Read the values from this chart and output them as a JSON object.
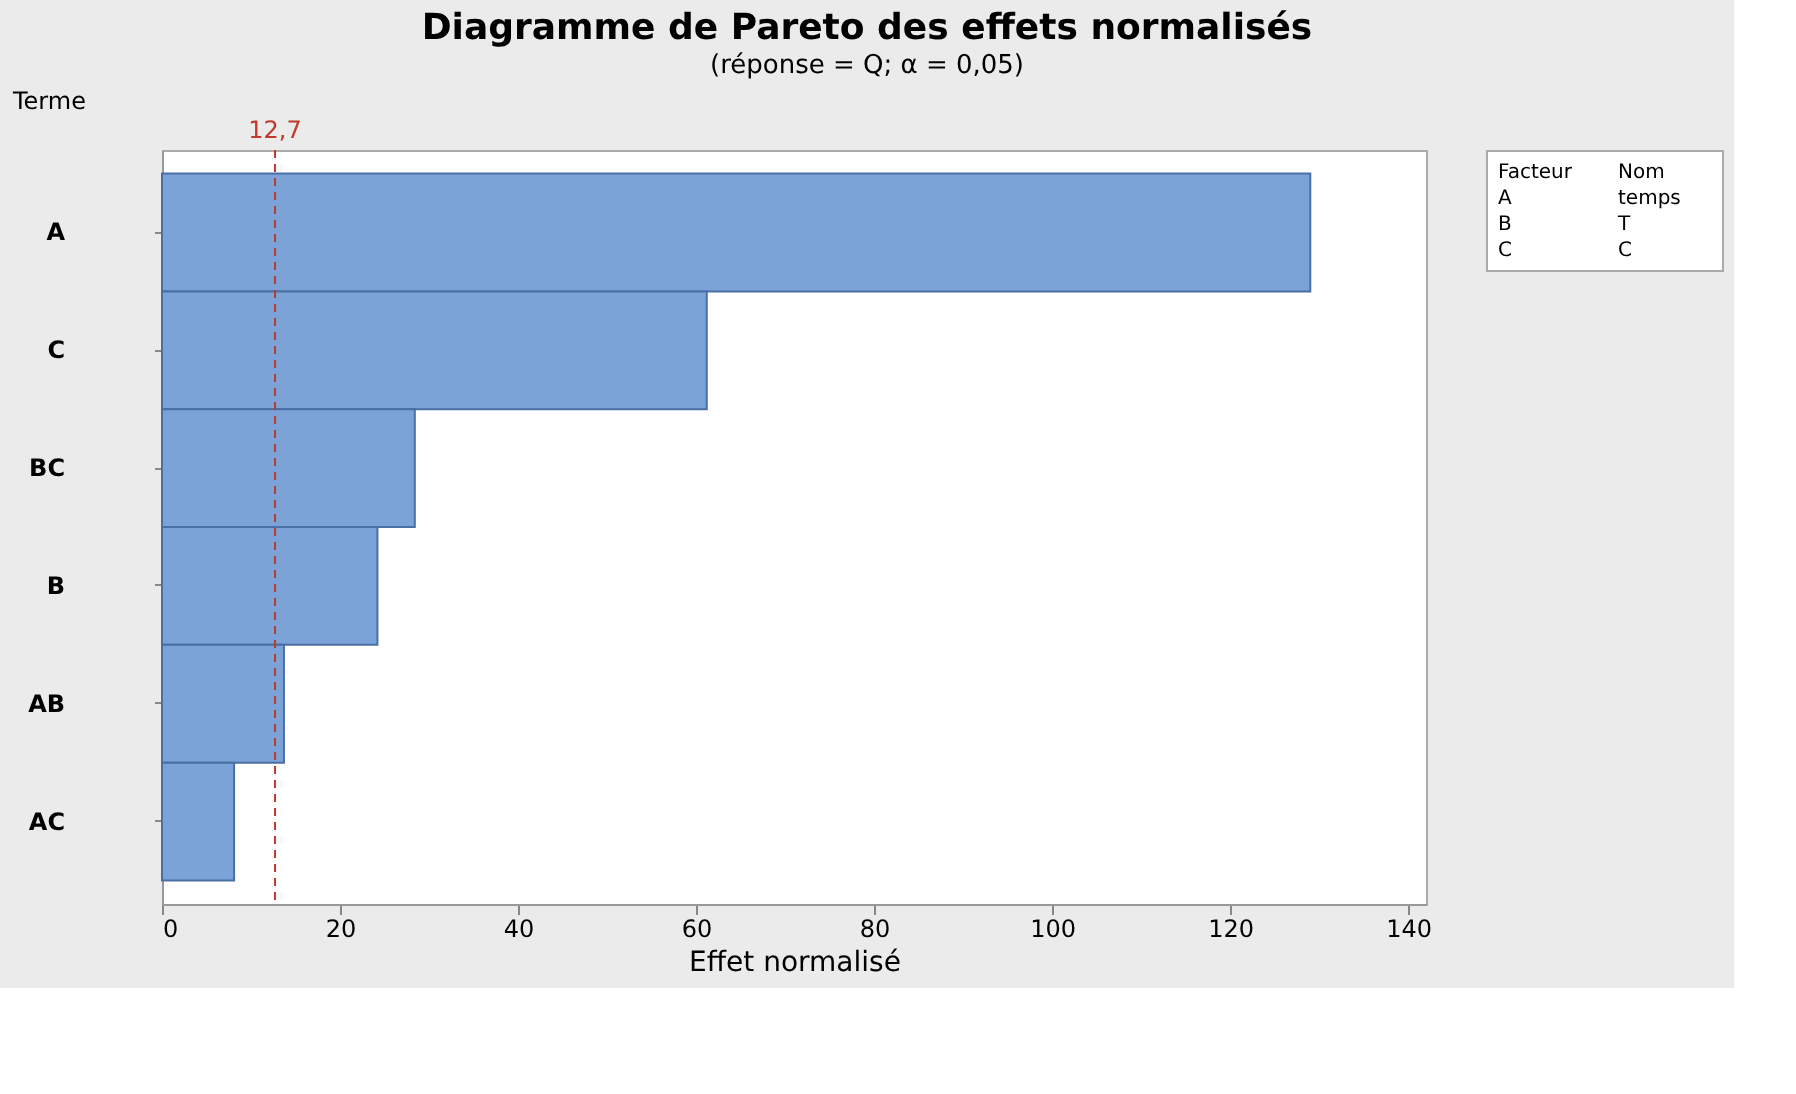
{
  "chart_data": {
    "type": "bar",
    "orientation": "horizontal",
    "title": "Diagramme de Pareto des effets normalisés",
    "subtitle": "(réponse = Q; α = 0,05)",
    "xlabel": "Effet normalisé",
    "ylabel": "Terme",
    "categories": [
      "A",
      "C",
      "BC",
      "B",
      "AB",
      "AC"
    ],
    "values": [
      129,
      61.2,
      28.4,
      24.2,
      13.7,
      8.1
    ],
    "color": "#7ba3d8",
    "xlim": [
      0,
      142
    ],
    "xticks": [
      0,
      20,
      40,
      60,
      80,
      100,
      120,
      140
    ],
    "grid": false,
    "ref_lines": [
      {
        "axis": "x",
        "value": 12.7,
        "label": "12,7",
        "color": "#c0392b",
        "line_style": "dashed"
      }
    ],
    "annotations": [
      "Facteur",
      "Nom",
      "A",
      "temps",
      "B",
      "T",
      "C",
      "C"
    ]
  }
}
